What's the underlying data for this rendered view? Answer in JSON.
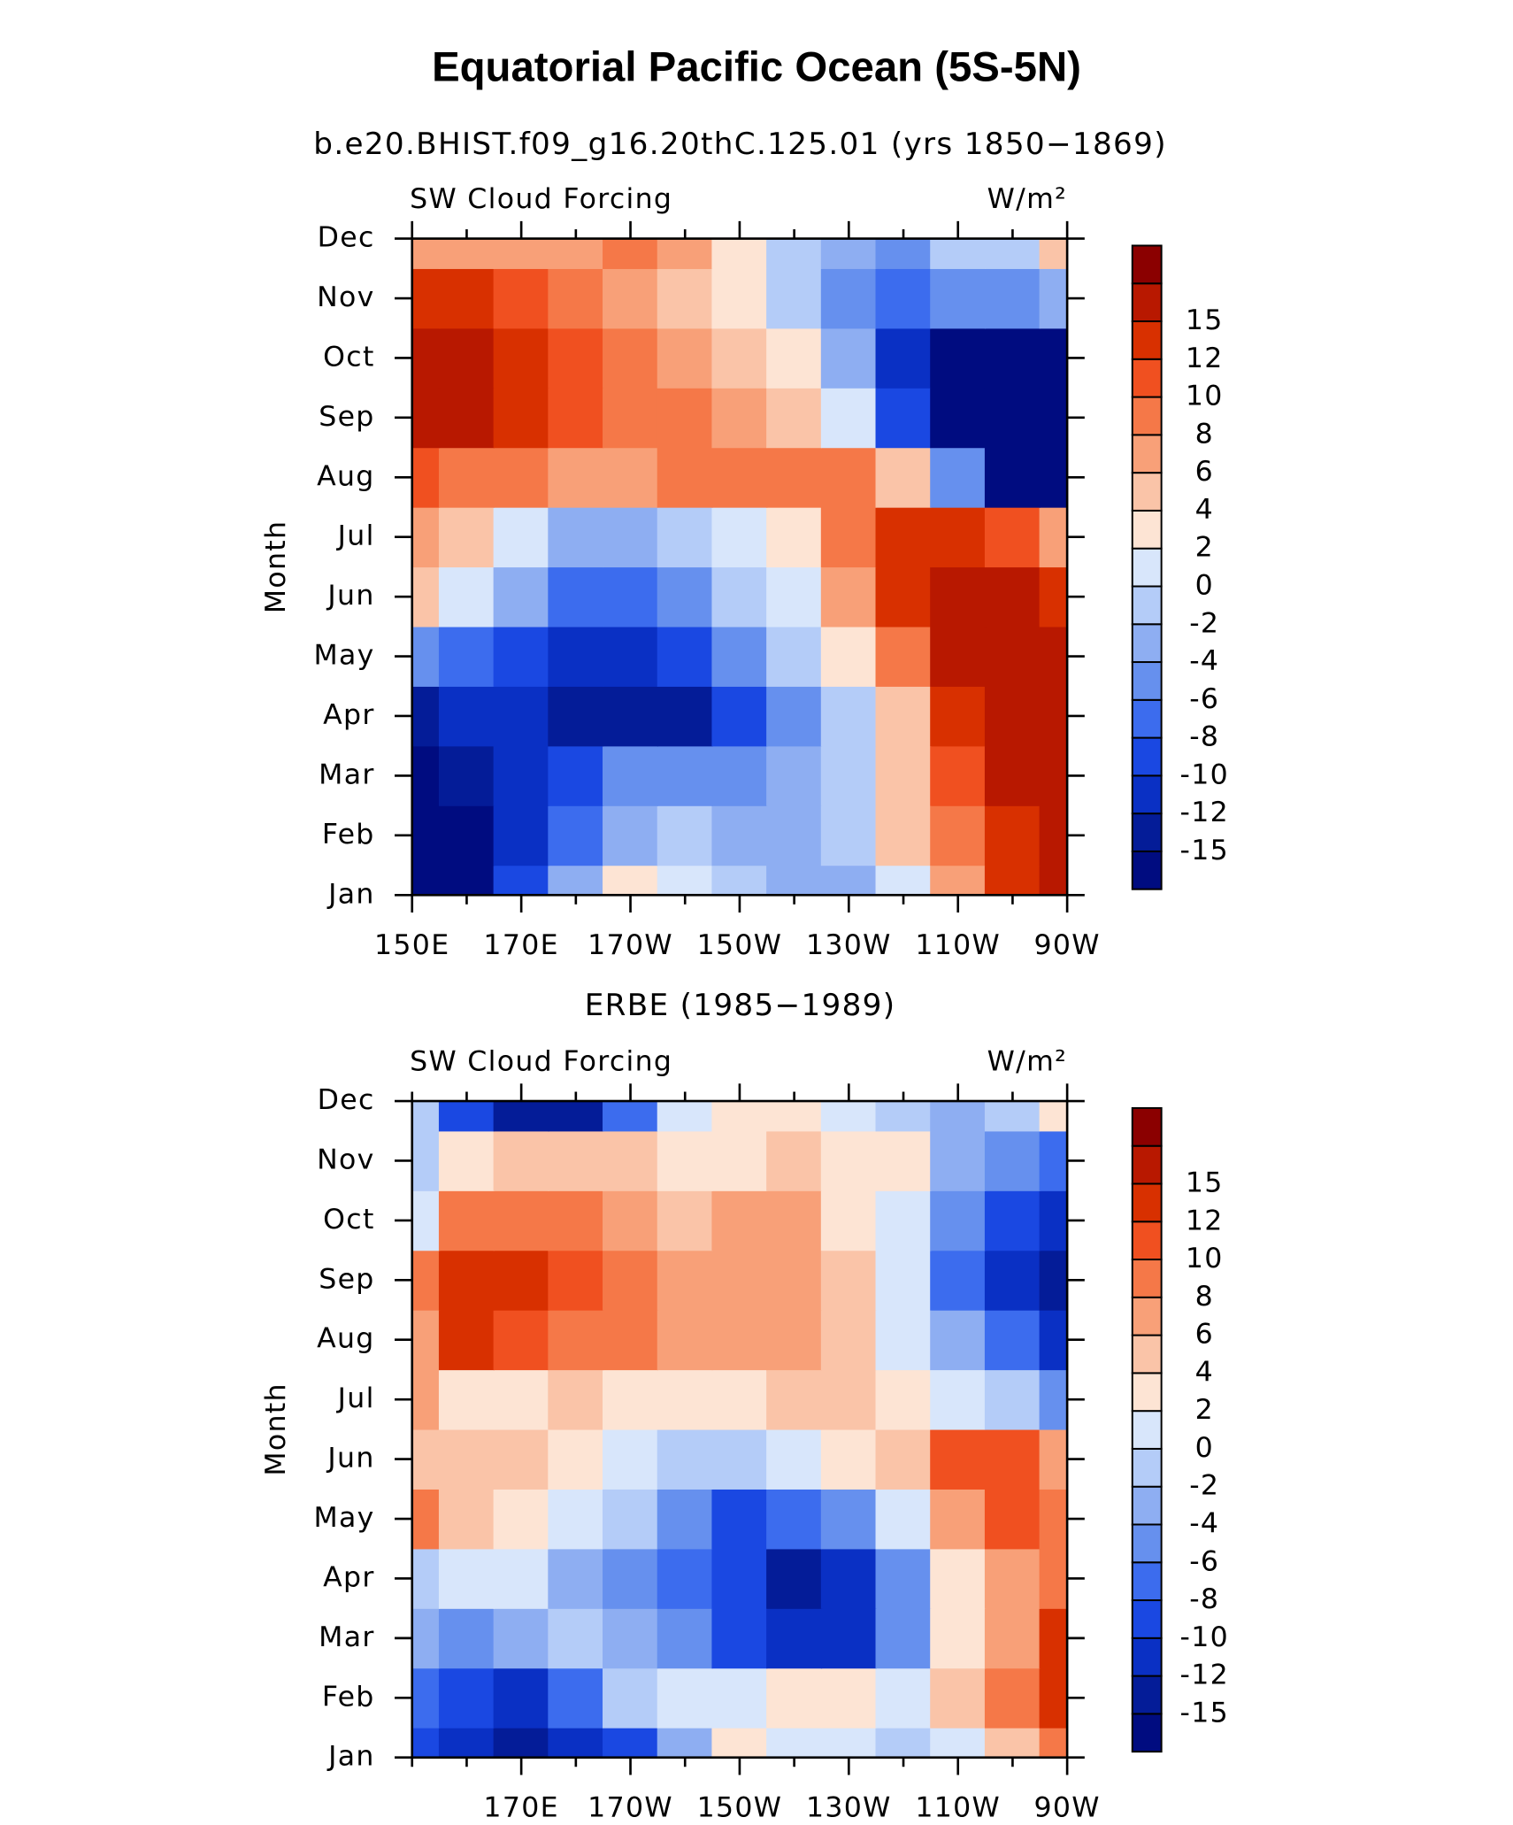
{
  "chart_data": {
    "type": "contour",
    "title": "Equatorial Pacific Ocean (5S-5N)",
    "levels": [
      -15,
      -12,
      -10,
      -8,
      -6,
      -4,
      -2,
      0,
      2,
      4,
      6,
      8,
      10,
      12,
      15
    ],
    "colors": [
      "#000c80",
      "#041c98",
      "#0a30c4",
      "#1a48e2",
      "#3c6cee",
      "#6690ee",
      "#8eaef2",
      "#b4ccf8",
      "#d8e6fb",
      "#fde4d4",
      "#fac4a8",
      "#f8a078",
      "#f57848",
      "#f05020",
      "#d83000",
      "#b81800",
      "#8b0000"
    ],
    "panels": [
      {
        "subtitle": "b.e20.BHIST.f09_g16.20thC.125.01 (yrs 1850−1869)",
        "left_label": "SW Cloud Forcing",
        "right_label": "W/m²",
        "ylabel": "Month",
        "categories": [
          "Jan",
          "Feb",
          "Mar",
          "Apr",
          "May",
          "Jun",
          "Jul",
          "Aug",
          "Sep",
          "Oct",
          "Nov",
          "Dec"
        ],
        "x": [
          150,
          160,
          170,
          180,
          190,
          200,
          210,
          220,
          230,
          240,
          250,
          260,
          270
        ],
        "xlim": [
          150,
          270
        ],
        "xticks": [
          {
            "value": 150,
            "label": "150E"
          },
          {
            "value": 170,
            "label": "170E"
          },
          {
            "value": 190,
            "label": "170W"
          },
          {
            "value": 210,
            "label": "150W"
          },
          {
            "value": 230,
            "label": "130W"
          },
          {
            "value": 250,
            "label": "110W"
          },
          {
            "value": 270,
            "label": "90W"
          }
        ],
        "values": [
          [
            -16,
            -16,
            -10,
            -4,
            2,
            0,
            -2,
            -4,
            -4,
            0,
            6,
            12,
            16
          ],
          [
            -16,
            -16,
            -12,
            -8,
            -4,
            -2,
            -3,
            -4,
            -2,
            4,
            8,
            14,
            16
          ],
          [
            -16,
            -15,
            -12,
            -10,
            -6,
            -6,
            -5,
            -4,
            -2,
            4,
            10,
            16,
            16
          ],
          [
            -13,
            -12,
            -12,
            -14,
            -14,
            -13,
            -10,
            -6,
            -2,
            4,
            12,
            16,
            16
          ],
          [
            -6,
            -8,
            -10,
            -12,
            -12,
            -10,
            -6,
            -2,
            2,
            8,
            16,
            17,
            17
          ],
          [
            4,
            0,
            -4,
            -8,
            -8,
            -6,
            -2,
            0,
            6,
            12,
            16,
            16,
            14
          ],
          [
            6,
            4,
            0,
            -4,
            -4,
            -2,
            0,
            2,
            8,
            12,
            12,
            10,
            6
          ],
          [
            10,
            8,
            8,
            6,
            6,
            8,
            8,
            8,
            8,
            4,
            -6,
            -16,
            -16
          ],
          [
            16,
            16,
            14,
            10,
            8,
            8,
            6,
            4,
            0,
            -10,
            -16,
            -16,
            -16
          ],
          [
            16,
            16,
            14,
            10,
            8,
            6,
            4,
            2,
            -4,
            -12,
            -16,
            -16,
            -16
          ],
          [
            12,
            12,
            10,
            8,
            6,
            4,
            2,
            -2,
            -6,
            -8,
            -6,
            -6,
            -4
          ],
          [
            6,
            6,
            6,
            6,
            8,
            6,
            2,
            -2,
            -4,
            -6,
            -2,
            -2,
            4
          ]
        ]
      },
      {
        "subtitle": "ERBE (1985−1989)",
        "left_label": "SW Cloud Forcing",
        "right_label": "W/m²",
        "ylabel": "Month",
        "categories": [
          "Jan",
          "Feb",
          "Mar",
          "Apr",
          "May",
          "Jun",
          "Jul",
          "Aug",
          "Sep",
          "Oct",
          "Nov",
          "Dec"
        ],
        "x": [
          150,
          160,
          170,
          180,
          190,
          200,
          210,
          220,
          230,
          240,
          250,
          260,
          270
        ],
        "xlim": [
          150,
          270
        ],
        "xticks": [
          {
            "value": 170,
            "label": "170E"
          },
          {
            "value": 190,
            "label": "170W"
          },
          {
            "value": 210,
            "label": "150W"
          },
          {
            "value": 230,
            "label": "130W"
          },
          {
            "value": 250,
            "label": "110W"
          },
          {
            "value": 270,
            "label": "90W"
          }
        ],
        "values": [
          [
            -10,
            -12,
            -14,
            -12,
            -10,
            -4,
            2,
            0,
            0,
            -2,
            0,
            4,
            8
          ],
          [
            -8,
            -10,
            -12,
            -8,
            -2,
            0,
            0,
            2,
            2,
            0,
            4,
            8,
            14
          ],
          [
            -4,
            -6,
            -4,
            -2,
            -4,
            -6,
            -10,
            -12,
            -12,
            -6,
            2,
            6,
            14
          ],
          [
            -2,
            0,
            0,
            -4,
            -6,
            -8,
            -10,
            -14,
            -12,
            -6,
            2,
            6,
            8
          ],
          [
            8,
            4,
            2,
            0,
            -2,
            -6,
            -10,
            -8,
            -6,
            0,
            6,
            10,
            8
          ],
          [
            4,
            4,
            4,
            2,
            0,
            -2,
            -2,
            0,
            2,
            4,
            10,
            10,
            6
          ],
          [
            6,
            2,
            2,
            4,
            2,
            2,
            2,
            4,
            4,
            2,
            0,
            -2,
            -6
          ],
          [
            6,
            12,
            10,
            8,
            8,
            6,
            6,
            6,
            4,
            0,
            -4,
            -8,
            -12
          ],
          [
            8,
            12,
            12,
            10,
            8,
            6,
            6,
            6,
            4,
            0,
            -8,
            -12,
            -14
          ],
          [
            0,
            8,
            8,
            8,
            6,
            4,
            6,
            6,
            2,
            0,
            -6,
            -10,
            -12
          ],
          [
            -2,
            2,
            4,
            4,
            4,
            2,
            2,
            4,
            2,
            2,
            -4,
            -6,
            -8
          ],
          [
            -2,
            -10,
            -14,
            -14,
            -8,
            0,
            2,
            2,
            0,
            -2,
            -4,
            -2,
            2
          ]
        ]
      }
    ]
  }
}
